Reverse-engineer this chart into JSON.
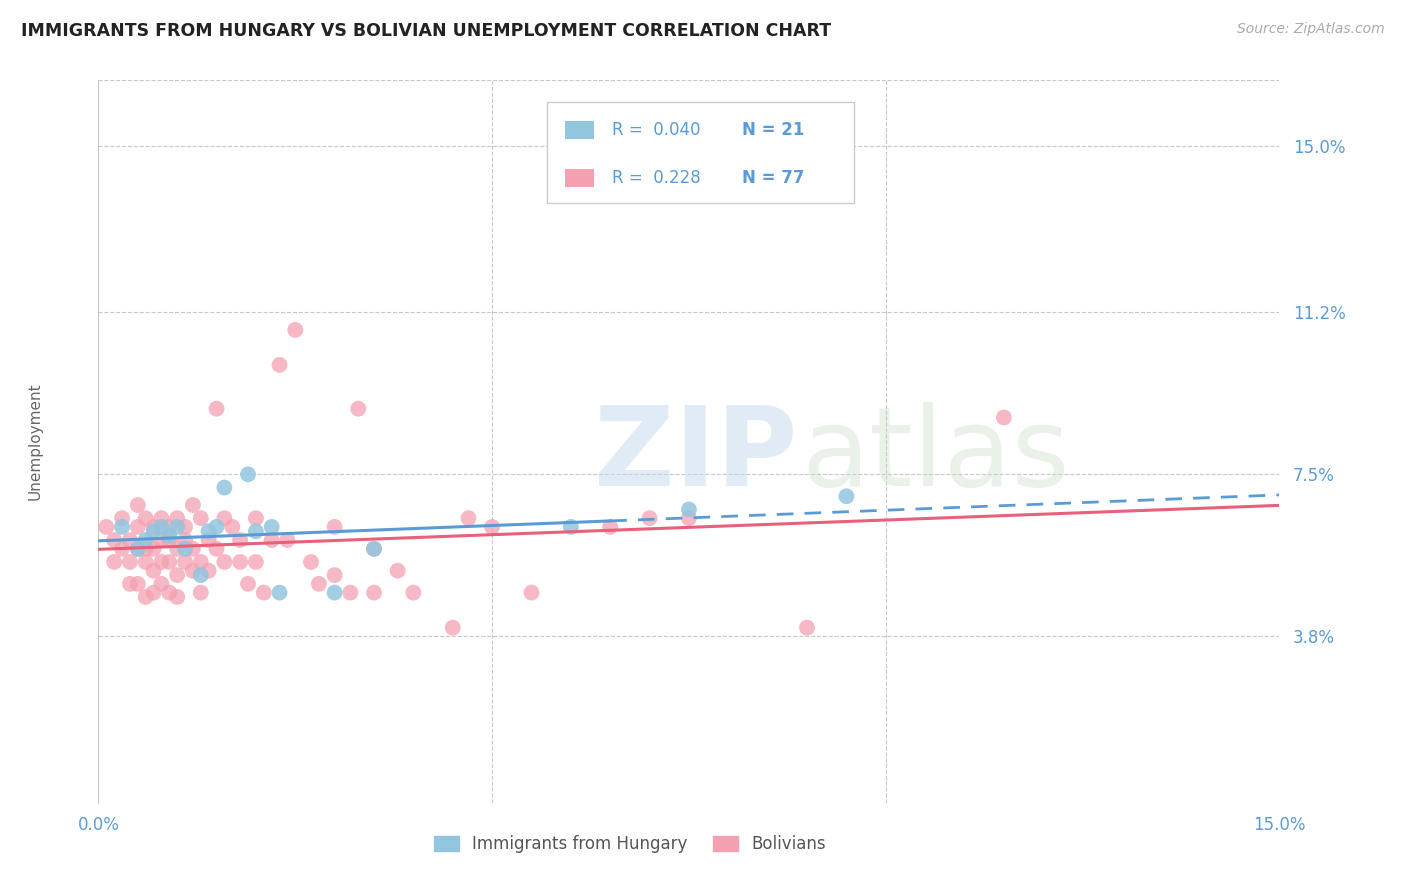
{
  "title": "IMMIGRANTS FROM HUNGARY VS BOLIVIAN UNEMPLOYMENT CORRELATION CHART",
  "source": "Source: ZipAtlas.com",
  "ylabel": "Unemployment",
  "ytick_values": [
    0.15,
    0.112,
    0.075,
    0.038
  ],
  "xrange": [
    0.0,
    0.15
  ],
  "yrange": [
    0.0,
    0.165
  ],
  "legend_r1": "0.040",
  "legend_n1": "21",
  "legend_r2": "0.228",
  "legend_n2": "77",
  "color_hungary": "#92C5DE",
  "color_bolivian": "#F4A0B0",
  "color_hungary_line": "#5B9BD5",
  "color_bolivian_line": "#E8607A",
  "color_axis_label": "#5B9BD5",
  "color_grid": "#C8C8C8",
  "hungary_points": [
    [
      0.003,
      0.063
    ],
    [
      0.005,
      0.058
    ],
    [
      0.006,
      0.06
    ],
    [
      0.007,
      0.062
    ],
    [
      0.008,
      0.063
    ],
    [
      0.009,
      0.061
    ],
    [
      0.01,
      0.063
    ],
    [
      0.011,
      0.058
    ],
    [
      0.013,
      0.052
    ],
    [
      0.014,
      0.062
    ],
    [
      0.015,
      0.063
    ],
    [
      0.016,
      0.072
    ],
    [
      0.019,
      0.075
    ],
    [
      0.02,
      0.062
    ],
    [
      0.022,
      0.063
    ],
    [
      0.023,
      0.048
    ],
    [
      0.03,
      0.048
    ],
    [
      0.035,
      0.058
    ],
    [
      0.06,
      0.063
    ],
    [
      0.075,
      0.067
    ],
    [
      0.095,
      0.07
    ]
  ],
  "bolivian_points": [
    [
      0.001,
      0.063
    ],
    [
      0.002,
      0.06
    ],
    [
      0.002,
      0.055
    ],
    [
      0.003,
      0.065
    ],
    [
      0.003,
      0.058
    ],
    [
      0.004,
      0.06
    ],
    [
      0.004,
      0.055
    ],
    [
      0.004,
      0.05
    ],
    [
      0.005,
      0.068
    ],
    [
      0.005,
      0.063
    ],
    [
      0.005,
      0.058
    ],
    [
      0.005,
      0.05
    ],
    [
      0.006,
      0.065
    ],
    [
      0.006,
      0.058
    ],
    [
      0.006,
      0.055
    ],
    [
      0.006,
      0.047
    ],
    [
      0.007,
      0.063
    ],
    [
      0.007,
      0.058
    ],
    [
      0.007,
      0.053
    ],
    [
      0.007,
      0.048
    ],
    [
      0.008,
      0.065
    ],
    [
      0.008,
      0.06
    ],
    [
      0.008,
      0.055
    ],
    [
      0.008,
      0.05
    ],
    [
      0.009,
      0.063
    ],
    [
      0.009,
      0.06
    ],
    [
      0.009,
      0.055
    ],
    [
      0.009,
      0.048
    ],
    [
      0.01,
      0.065
    ],
    [
      0.01,
      0.058
    ],
    [
      0.01,
      0.052
    ],
    [
      0.01,
      0.047
    ],
    [
      0.011,
      0.063
    ],
    [
      0.011,
      0.06
    ],
    [
      0.011,
      0.055
    ],
    [
      0.012,
      0.068
    ],
    [
      0.012,
      0.058
    ],
    [
      0.012,
      0.053
    ],
    [
      0.013,
      0.065
    ],
    [
      0.013,
      0.055
    ],
    [
      0.013,
      0.048
    ],
    [
      0.014,
      0.06
    ],
    [
      0.014,
      0.053
    ],
    [
      0.015,
      0.09
    ],
    [
      0.015,
      0.058
    ],
    [
      0.016,
      0.065
    ],
    [
      0.016,
      0.055
    ],
    [
      0.017,
      0.063
    ],
    [
      0.018,
      0.06
    ],
    [
      0.018,
      0.055
    ],
    [
      0.019,
      0.05
    ],
    [
      0.02,
      0.065
    ],
    [
      0.02,
      0.055
    ],
    [
      0.021,
      0.048
    ],
    [
      0.022,
      0.06
    ],
    [
      0.023,
      0.1
    ],
    [
      0.024,
      0.06
    ],
    [
      0.025,
      0.108
    ],
    [
      0.027,
      0.055
    ],
    [
      0.028,
      0.05
    ],
    [
      0.03,
      0.063
    ],
    [
      0.03,
      0.052
    ],
    [
      0.032,
      0.048
    ],
    [
      0.033,
      0.09
    ],
    [
      0.035,
      0.058
    ],
    [
      0.035,
      0.048
    ],
    [
      0.038,
      0.053
    ],
    [
      0.04,
      0.048
    ],
    [
      0.045,
      0.04
    ],
    [
      0.047,
      0.065
    ],
    [
      0.05,
      0.063
    ],
    [
      0.055,
      0.048
    ],
    [
      0.065,
      0.063
    ],
    [
      0.07,
      0.065
    ],
    [
      0.075,
      0.065
    ],
    [
      0.09,
      0.04
    ],
    [
      0.115,
      0.088
    ]
  ],
  "hungary_line_solid_end": 0.065,
  "bottom_legend_labels": [
    "Immigrants from Hungary",
    "Bolivians"
  ]
}
